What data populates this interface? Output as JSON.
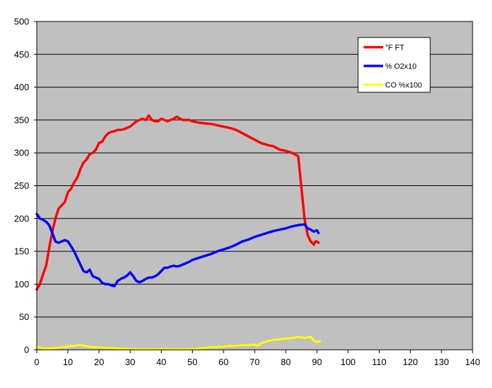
{
  "chart_data": {
    "type": "line",
    "title": "",
    "xlabel": "",
    "ylabel": "",
    "xlim": [
      0,
      140
    ],
    "ylim": [
      0,
      500
    ],
    "x_ticks": [
      "0",
      "10",
      "20",
      "30",
      "40",
      "50",
      "60",
      "70",
      "80",
      "90",
      "100",
      "110",
      "120",
      "130",
      "140"
    ],
    "y_ticks": [
      "0",
      "50",
      "100",
      "150",
      "200",
      "250",
      "300",
      "350",
      "400",
      "450",
      "500"
    ],
    "grid": "horizontal",
    "legend_position": "top-right",
    "colors": {
      "plot_bg": "#c0c0c0",
      "frame": "#000000"
    },
    "series": [
      {
        "name": "°F FT",
        "color": "#ff0000",
        "x": [
          0,
          1,
          2,
          3,
          4,
          5,
          6,
          7,
          8,
          9,
          10,
          11,
          12,
          13,
          14,
          15,
          16,
          17,
          18,
          19,
          20,
          21,
          22,
          23,
          24,
          25,
          26,
          27,
          28,
          29,
          30,
          31,
          32,
          33,
          34,
          35,
          36,
          37,
          38,
          39,
          40,
          41,
          42,
          43,
          44,
          45,
          46,
          47,
          48,
          49,
          50,
          52,
          54,
          56,
          58,
          60,
          62,
          64,
          66,
          68,
          70,
          72,
          74,
          76,
          78,
          80,
          82,
          84,
          86,
          87,
          88,
          88.5,
          89,
          89.5,
          90,
          90.5
        ],
        "y": [
          92,
          100,
          115,
          128,
          155,
          180,
          200,
          215,
          220,
          225,
          240,
          245,
          255,
          262,
          275,
          285,
          290,
          298,
          300,
          305,
          315,
          317,
          325,
          330,
          332,
          333,
          335,
          335,
          336,
          338,
          340,
          344,
          348,
          350,
          352,
          350,
          357,
          350,
          348,
          348,
          352,
          350,
          348,
          350,
          352,
          355,
          352,
          350,
          350,
          350,
          348,
          346,
          345,
          344,
          342,
          340,
          338,
          335,
          330,
          325,
          320,
          315,
          312,
          310,
          305,
          303,
          300,
          295,
          200,
          175,
          165,
          163,
          160,
          165,
          165,
          163
        ],
        "width": 3.5
      },
      {
        "name": "% O2x10",
        "color": "#0000ff",
        "x": [
          0,
          1,
          2,
          3,
          4,
          5,
          6,
          7,
          8,
          9,
          10,
          11,
          12,
          13,
          14,
          15,
          16,
          17,
          18,
          19,
          20,
          21,
          22,
          23,
          24,
          25,
          26,
          27,
          28,
          29,
          30,
          31,
          32,
          33,
          34,
          35,
          36,
          37,
          38,
          39,
          40,
          41,
          42,
          43,
          44,
          45,
          46,
          47,
          48,
          49,
          50,
          52,
          54,
          56,
          58,
          60,
          62,
          64,
          66,
          68,
          70,
          72,
          74,
          76,
          78,
          80,
          82,
          84,
          86,
          87,
          88,
          89,
          90,
          90.5
        ],
        "y": [
          207,
          200,
          198,
          195,
          190,
          178,
          165,
          163,
          165,
          167,
          165,
          158,
          150,
          140,
          130,
          120,
          118,
          122,
          112,
          110,
          108,
          102,
          100,
          100,
          98,
          97,
          105,
          108,
          110,
          113,
          118,
          112,
          105,
          103,
          105,
          108,
          110,
          110,
          112,
          115,
          120,
          125,
          125,
          127,
          128,
          127,
          128,
          130,
          132,
          134,
          137,
          140,
          143,
          146,
          150,
          153,
          156,
          160,
          165,
          168,
          172,
          175,
          178,
          181,
          183,
          185,
          188,
          190,
          191,
          185,
          183,
          180,
          182,
          178
        ],
        "width": 3.5
      },
      {
        "name": "CO %x100",
        "color": "#ffff00",
        "x": [
          0,
          2,
          4,
          6,
          8,
          10,
          12,
          14,
          16,
          18,
          20,
          22,
          24,
          26,
          28,
          30,
          35,
          40,
          45,
          50,
          52,
          54,
          56,
          58,
          60,
          62,
          64,
          66,
          68,
          70,
          71,
          72,
          74,
          76,
          78,
          80,
          82,
          84,
          86,
          88,
          89,
          90,
          91
        ],
        "y": [
          5,
          2,
          2,
          3,
          4,
          5,
          6,
          8,
          5,
          4,
          4,
          3,
          3,
          2,
          2,
          1,
          1,
          1,
          1,
          1,
          2,
          3,
          4,
          4,
          5,
          6,
          6,
          7,
          7,
          8,
          6,
          10,
          13,
          15,
          16,
          17,
          18,
          20,
          18,
          20,
          14,
          12,
          13
        ],
        "width": 3
      }
    ]
  }
}
